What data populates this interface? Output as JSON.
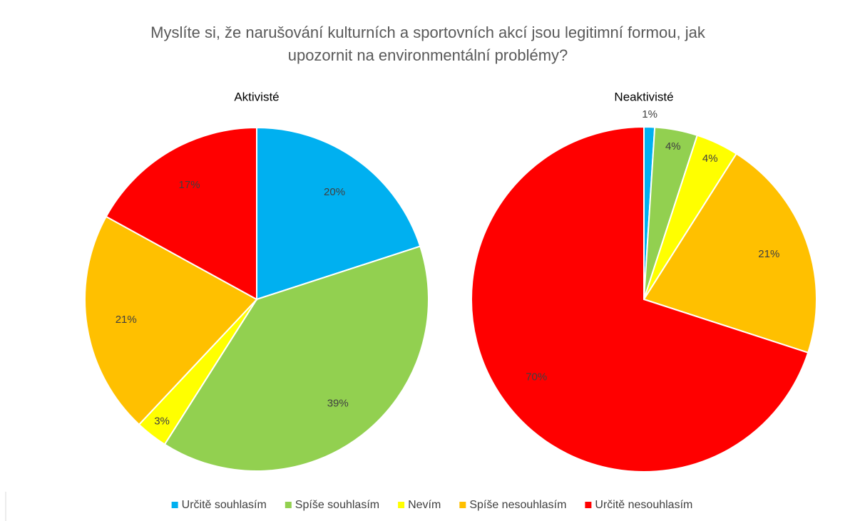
{
  "title": "Myslíte si, že narušování kulturních a sportovních akcí jsou legitimní formou, jak upozornit na environmentální problémy?",
  "chart_data": [
    {
      "type": "pie",
      "title": "Aktivisté",
      "categories": [
        "Určitě souhlasím",
        "Spíše souhlasím",
        "Nevím",
        "Spíše nesouhlasím",
        "Určitě nesouhlasím"
      ],
      "values": [
        20,
        39,
        3,
        21,
        17
      ],
      "value_labels": [
        "20%",
        "39%",
        "3%",
        "21%",
        "17%"
      ],
      "colors": [
        "#00b0f0",
        "#92d050",
        "#ffff00",
        "#ffc000",
        "#ff0000"
      ]
    },
    {
      "type": "pie",
      "title": "Neaktivisté",
      "categories": [
        "Určitě souhlasím",
        "Spíše souhlasím",
        "Nevím",
        "Spíše nesouhlasím",
        "Určitě nesouhlasím"
      ],
      "values": [
        1,
        4,
        4,
        21,
        70
      ],
      "value_labels": [
        "1%",
        "4%",
        "4%",
        "21%",
        "70%"
      ],
      "colors": [
        "#00b0f0",
        "#92d050",
        "#ffff00",
        "#ffc000",
        "#ff0000"
      ]
    }
  ]
}
